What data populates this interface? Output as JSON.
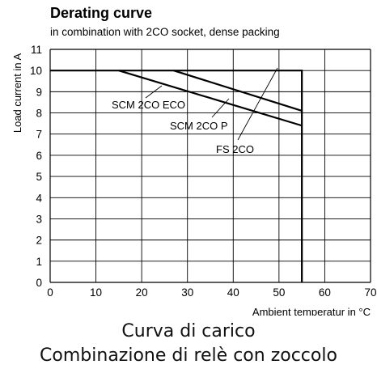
{
  "chart_data": {
    "type": "line",
    "title": "Derating curve",
    "subtitle": "in combination with 2CO socket, dense packing",
    "xlabel": "Ambient temperatur in °C",
    "ylabel": "Load current in A",
    "xlim": [
      0,
      70
    ],
    "ylim": [
      0,
      11
    ],
    "xticks": [
      0,
      10,
      20,
      30,
      40,
      50,
      60,
      70
    ],
    "yticks": [
      0,
      1,
      2,
      3,
      4,
      5,
      6,
      7,
      8,
      9,
      10,
      11
    ],
    "grid": true,
    "series": [
      {
        "name": "FS 2CO",
        "x": [
          0,
          55,
          55
        ],
        "y": [
          10,
          10,
          0
        ]
      },
      {
        "name": "SCM 2CO P",
        "x": [
          27,
          55
        ],
        "y": [
          10,
          8.1
        ]
      },
      {
        "name": "SCM 2CO ECO",
        "x": [
          15,
          55
        ],
        "y": [
          10,
          7.4
        ]
      }
    ]
  },
  "captions": {
    "line1": "Curva di carico",
    "line2": "Combinazione di relè con zoccolo"
  }
}
